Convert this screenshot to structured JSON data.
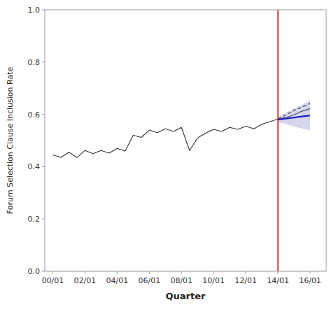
{
  "chart_data": {
    "type": "line",
    "xlabel": "Quarter",
    "ylabel": "Forum Selection Clause Inclusion Rate",
    "xlim": [
      -0.5,
      17.0
    ],
    "ylim": [
      0.0,
      1.0
    ],
    "xticks": [
      {
        "value": 0,
        "label": "00/01"
      },
      {
        "value": 2,
        "label": "02/01"
      },
      {
        "value": 4,
        "label": "04/01"
      },
      {
        "value": 6,
        "label": "06/01"
      },
      {
        "value": 8,
        "label": "08/01"
      },
      {
        "value": 10,
        "label": "10/01"
      },
      {
        "value": 12,
        "label": "12/01"
      },
      {
        "value": 14,
        "label": "14/01"
      },
      {
        "value": 16,
        "label": "16/01"
      }
    ],
    "yticks": [
      {
        "value": 0.0,
        "label": "0.0"
      },
      {
        "value": 0.2,
        "label": "0.2"
      },
      {
        "value": 0.4,
        "label": "0.4"
      },
      {
        "value": 0.6,
        "label": "0.6"
      },
      {
        "value": 0.8,
        "label": "0.8"
      },
      {
        "value": 1.0,
        "label": "1.0"
      }
    ],
    "grid": false,
    "series": [
      {
        "type": "line",
        "color": "#333333",
        "line_style": "solid",
        "x": [
          0,
          0.5,
          1,
          1.5,
          2,
          2.5,
          3,
          3.5,
          4,
          4.5,
          5,
          5.5,
          6,
          6.5,
          7,
          7.5,
          8,
          8.5,
          9,
          9.5,
          10,
          10.5,
          11,
          11.5,
          12,
          12.5,
          13,
          13.5,
          14,
          14.5,
          15,
          15.5,
          16
        ],
        "values": [
          0.445,
          0.435,
          0.455,
          0.435,
          0.462,
          0.45,
          0.462,
          0.452,
          0.47,
          0.46,
          0.52,
          0.512,
          0.54,
          0.53,
          0.545,
          0.535,
          0.55,
          0.462,
          0.51,
          0.528,
          0.543,
          0.535,
          0.55,
          0.543,
          0.555,
          0.545,
          0.562,
          0.572,
          0.582,
          0.588,
          0.598,
          0.612,
          0.622
        ]
      },
      {
        "type": "band",
        "color": "#8888cc",
        "x": [
          14.0,
          14.25,
          14.5,
          14.75,
          15.0,
          15.25,
          15.5,
          15.75,
          16.0
        ],
        "lower": [
          0.57,
          0.566,
          0.562,
          0.558,
          0.554,
          0.55,
          0.546,
          0.542,
          0.538
        ],
        "upper": [
          0.59,
          0.598,
          0.606,
          0.614,
          0.622,
          0.63,
          0.638,
          0.646,
          0.654
        ]
      },
      {
        "type": "line",
        "color": "#2222cc",
        "line_style": "solid",
        "x": [
          14.0,
          14.25,
          14.5,
          14.75,
          15.0,
          15.25,
          15.5,
          15.75,
          16.0
        ],
        "values": [
          0.58,
          0.582,
          0.584,
          0.586,
          0.588,
          0.59,
          0.592,
          0.594,
          0.596
        ]
      },
      {
        "type": "line",
        "color": "#333333",
        "line_style": "dashed",
        "x": [
          14.0,
          14.25,
          14.5,
          14.75,
          15.0,
          15.25,
          15.5,
          15.75,
          16.0
        ],
        "values": [
          0.582,
          0.59,
          0.598,
          0.607,
          0.615,
          0.622,
          0.628,
          0.635,
          0.642
        ]
      }
    ],
    "reference_lines": [
      {
        "x": 14,
        "color": "#cc0000"
      }
    ]
  }
}
